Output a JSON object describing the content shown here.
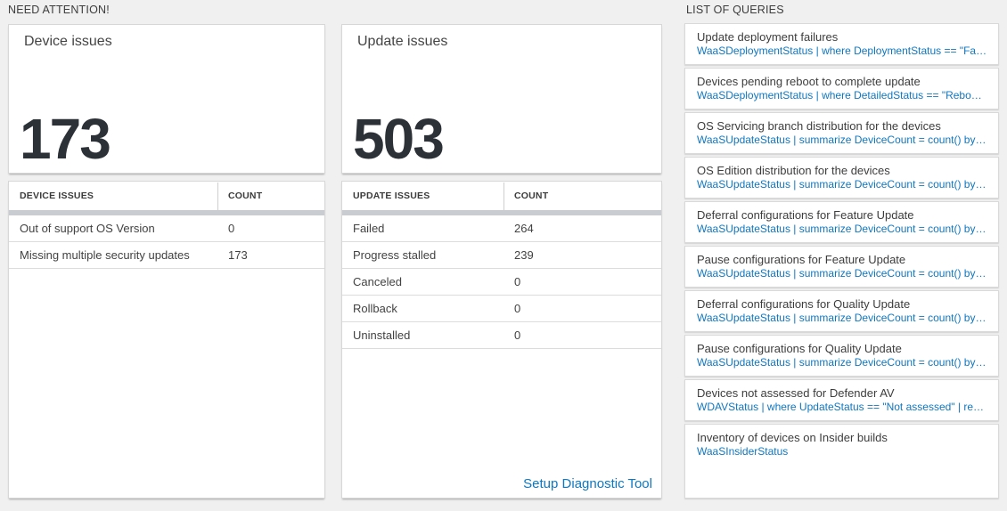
{
  "colors": {
    "page_background": "#f0f0f0",
    "accent_blue": "#0f77c0",
    "big_number": "#2b3137",
    "divider_bar": "#c9cdd1"
  },
  "sections": {
    "need_attention": "NEED ATTENTION!",
    "list_of_queries": "LIST OF QUERIES"
  },
  "device_card": {
    "title": "Device issues",
    "count": "173",
    "table": {
      "headers": [
        "DEVICE ISSUES",
        "COUNT"
      ],
      "rows": [
        {
          "label": "Out of support OS Version",
          "count": "0"
        },
        {
          "label": "Missing multiple security updates",
          "count": "173"
        }
      ]
    }
  },
  "update_card": {
    "title": "Update issues",
    "count": "503",
    "table": {
      "headers": [
        "UPDATE ISSUES",
        "COUNT"
      ],
      "rows": [
        {
          "label": "Failed",
          "count": "264"
        },
        {
          "label": "Progress stalled",
          "count": "239"
        },
        {
          "label": "Canceled",
          "count": "0"
        },
        {
          "label": "Rollback",
          "count": "0"
        },
        {
          "label": "Uninstalled",
          "count": "0"
        }
      ]
    },
    "link": "Setup Diagnostic Tool"
  },
  "queries": [
    {
      "title": "Update deployment failures",
      "query": "WaaSDeploymentStatus | where DeploymentStatus == \"Failed\" |..."
    },
    {
      "title": "Devices pending reboot to complete update",
      "query": "WaaSDeploymentStatus | where DetailedStatus == \"Reboot pend..."
    },
    {
      "title": "OS Servicing branch distribution for the devices",
      "query": "WaaSUpdateStatus | summarize DeviceCount = count() by OSSer..."
    },
    {
      "title": "OS Edition distribution for the devices",
      "query": "WaaSUpdateStatus | summarize DeviceCount = count() by OSEdit..."
    },
    {
      "title": "Deferral configurations for Feature Update",
      "query": "WaaSUpdateStatus | summarize DeviceCount = count() by Featur..."
    },
    {
      "title": "Pause configurations for Feature Update",
      "query": "WaaSUpdateStatus | summarize DeviceCount = count() by Featur..."
    },
    {
      "title": "Deferral configurations for Quality Update",
      "query": "WaaSUpdateStatus | summarize DeviceCount = count() by Qualit..."
    },
    {
      "title": "Pause configurations for Quality Update",
      "query": "WaaSUpdateStatus | summarize DeviceCount = count() by Qualit..."
    },
    {
      "title": "Devices not assessed for Defender AV",
      "query": "WDAVStatus | where UpdateStatus == \"Not assessed\" | render ta..."
    },
    {
      "title": "Inventory of devices on Insider builds",
      "query": "WaaSInsiderStatus"
    }
  ]
}
